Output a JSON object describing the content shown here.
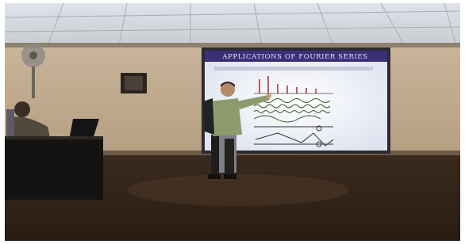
{
  "slide": {
    "title": "APPLICATIONS OF FOURIER SERIES"
  }
}
